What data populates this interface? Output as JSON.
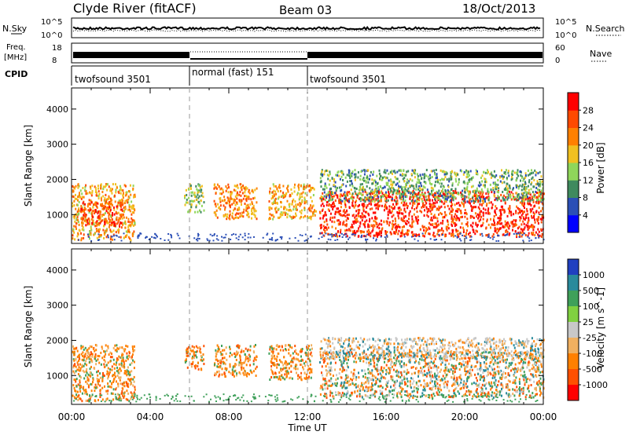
{
  "header": {
    "station": "Clyde River (fitACF)",
    "beam": "Beam 03",
    "date": "18/Oct/2013"
  },
  "strips": {
    "nsky_label": "N.Sky",
    "nsky_ticks": [
      "10^5",
      "10^0"
    ],
    "nsearch_label": "N.Search",
    "freq_label_1": "Freq.",
    "freq_label_2": "[MHz]",
    "freq_ticks": [
      "18",
      "8"
    ],
    "nave_label": "Nave",
    "nave_ticks": [
      "60",
      "0"
    ],
    "cpid_label": "CPID",
    "cpid_segments": [
      {
        "label": "twofsound 3501",
        "start_hour": 0,
        "end_hour": 6
      },
      {
        "label": "normal (fast) 151",
        "start_hour": 6,
        "end_hour": 12
      },
      {
        "label": "twofsound 3501",
        "start_hour": 12,
        "end_hour": 24
      }
    ]
  },
  "colors": {
    "power": [
      "#0000ff",
      "#2b4fb6",
      "#3f8a5e",
      "#8fd65a",
      "#f0c020",
      "#ff8000",
      "#ff4a00",
      "#ff0000"
    ],
    "velocity": [
      "#2040c0",
      "#2a8a9c",
      "#3fa05a",
      "#80d040",
      "#c8c8c8",
      "#f0b060",
      "#ff8000",
      "#ff5000",
      "#ff0000"
    ]
  },
  "chart_data": [
    {
      "type": "heatmap",
      "panel": "power",
      "ylabel": "Slant Range [km]",
      "ylim": [
        180,
        4600
      ],
      "yticks": [
        1000,
        2000,
        3000,
        4000
      ],
      "xlim": [
        0,
        24
      ],
      "colorbar_label": "Power [dB]",
      "colorbar_ticks": [
        4,
        8,
        12,
        16,
        20,
        24,
        28
      ],
      "colorbar_range": [
        0,
        32
      ],
      "regions": [
        {
          "t0": 0.0,
          "t1": 3.2,
          "r0": 300,
          "r1": 1900,
          "level": 20
        },
        {
          "t0": 0.4,
          "t1": 2.6,
          "r0": 700,
          "r1": 1400,
          "level": 26
        },
        {
          "t0": 5.7,
          "t1": 6.7,
          "r0": 1100,
          "r1": 1900,
          "level": 14
        },
        {
          "t0": 7.2,
          "t1": 9.4,
          "r0": 900,
          "r1": 1900,
          "level": 22
        },
        {
          "t0": 10.0,
          "t1": 12.4,
          "r0": 900,
          "r1": 1900,
          "level": 20
        },
        {
          "t0": 12.6,
          "t1": 24.0,
          "r0": 400,
          "r1": 1700,
          "level": 28
        },
        {
          "t0": 12.6,
          "t1": 24.0,
          "r0": 1400,
          "r1": 2300,
          "level": 12
        }
      ]
    },
    {
      "type": "heatmap",
      "panel": "velocity",
      "ylabel": "Slant Range [km]",
      "ylim": [
        180,
        4600
      ],
      "yticks": [
        1000,
        2000,
        3000,
        4000
      ],
      "xlim": [
        0,
        24
      ],
      "xticks": [
        "00:00",
        "04:00",
        "08:00",
        "12:00",
        "16:00",
        "20:00",
        "00:00"
      ],
      "xlabel": "Time UT",
      "colorbar_label": "Velocity [m s^-1]",
      "colorbar_ticks": [
        "1000",
        "500",
        "100",
        "25",
        "-25",
        "-100",
        "-500",
        "-1000"
      ],
      "regions": [
        {
          "t0": 0.0,
          "t1": 3.2,
          "r0": 300,
          "r1": 1900,
          "vel": -300
        },
        {
          "t0": 5.7,
          "t1": 6.7,
          "r0": 1200,
          "r1": 1900,
          "vel": -200
        },
        {
          "t0": 7.2,
          "t1": 9.4,
          "r0": 1000,
          "r1": 1900,
          "vel": -300
        },
        {
          "t0": 10.0,
          "t1": 12.2,
          "r0": 900,
          "r1": 1900,
          "vel": -300
        },
        {
          "t0": 12.6,
          "t1": 24.0,
          "r0": 400,
          "r1": 1700,
          "vel": -100
        },
        {
          "t0": 12.6,
          "t1": 24.0,
          "r0": 1500,
          "r1": 2100,
          "vel": 0
        }
      ]
    }
  ]
}
